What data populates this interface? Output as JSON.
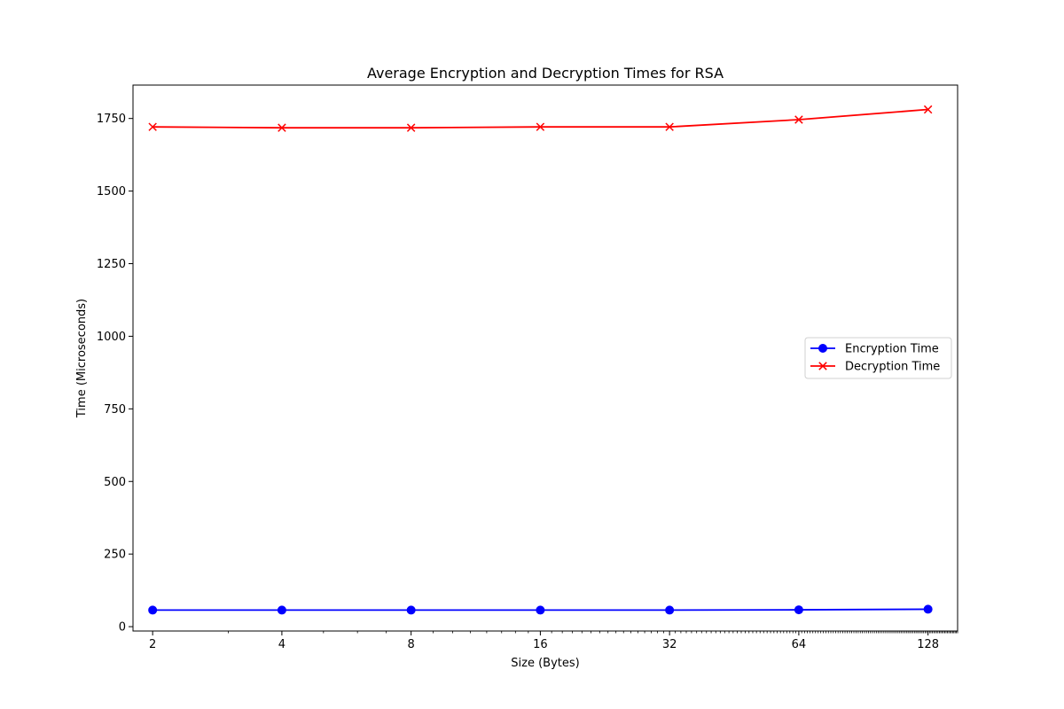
{
  "chart_data": {
    "type": "line",
    "title": "Average Encryption and Decryption Times for RSA",
    "xlabel": "Size (Bytes)",
    "ylabel": "Time (Microseconds)",
    "xscale": "log2",
    "xlim": [
      1.8,
      150
    ],
    "ylim": [
      -15,
      1865
    ],
    "x": [
      2,
      4,
      8,
      16,
      32,
      64,
      128
    ],
    "x_tick_labels": [
      "2",
      "4",
      "8",
      "16",
      "32",
      "64",
      "128"
    ],
    "y_ticks": [
      0,
      250,
      500,
      750,
      1000,
      1250,
      1500,
      1750
    ],
    "grid": false,
    "legend_position": "center-right",
    "series": [
      {
        "name": "Encryption Time",
        "color": "#0000ff",
        "marker": "circle",
        "values": [
          57,
          57,
          57,
          57,
          57,
          58,
          60
        ]
      },
      {
        "name": "Decryption Time",
        "color": "#ff0000",
        "marker": "x",
        "values": [
          1721,
          1718,
          1718,
          1721,
          1721,
          1746,
          1781
        ]
      }
    ]
  }
}
